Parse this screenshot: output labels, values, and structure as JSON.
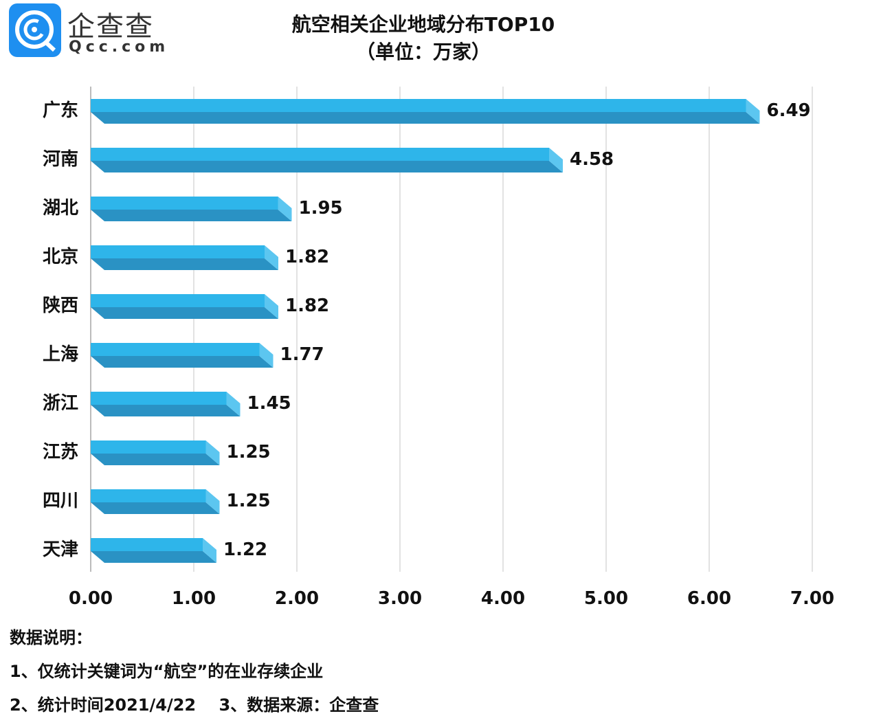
{
  "logo": {
    "name": "企查查",
    "domain": "Qcc.com",
    "color": "#1e8ff0"
  },
  "chart_data": {
    "type": "bar",
    "orientation": "horizontal",
    "title": "航空相关企业地域分布TOP10",
    "subtitle": "（单位：万家）",
    "categories": [
      "广东",
      "河南",
      "湖北",
      "北京",
      "陕西",
      "上海",
      "浙江",
      "江苏",
      "四川",
      "天津"
    ],
    "values": [
      6.49,
      4.58,
      1.95,
      1.82,
      1.82,
      1.77,
      1.45,
      1.25,
      1.25,
      1.22
    ],
    "value_labels": [
      "6.49",
      "4.58",
      "1.95",
      "1.82",
      "1.82",
      "1.77",
      "1.45",
      "1.25",
      "1.25",
      "1.22"
    ],
    "xlim": [
      0,
      7
    ],
    "xticks": [
      "0.00",
      "1.00",
      "2.00",
      "3.00",
      "4.00",
      "5.00",
      "6.00",
      "7.00"
    ],
    "grid": true,
    "bar_color": "#2eb5ea",
    "bar_shade_color": "#2a92c4"
  },
  "notes": {
    "heading": "数据说明：",
    "line1": "1、仅统计关键词为“航空”的在业存续企业",
    "line2": "2、统计时间2021/4/22    3、数据来源：企查查"
  }
}
